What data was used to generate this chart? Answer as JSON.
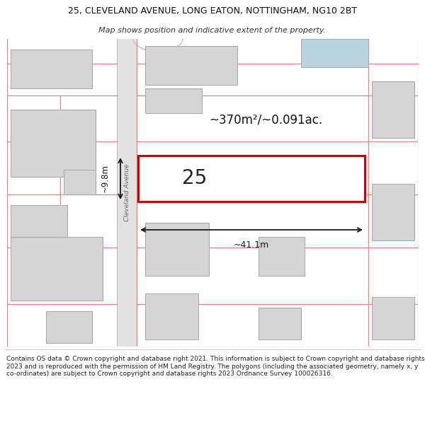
{
  "title_line1": "25, CLEVELAND AVENUE, LONG EATON, NOTTINGHAM, NG10 2BT",
  "title_line2": "Map shows position and indicative extent of the property.",
  "area_text": "~370m²/~0.091ac.",
  "property_number": "25",
  "width_label": "~41.1m",
  "height_label": "~9.8m",
  "street_label": "Cleveland Avenue",
  "footer_text": "Contains OS data © Crown copyright and database right 2021. This information is subject to Crown copyright and database rights 2023 and is reproduced with the permission of HM Land Registry. The polygons (including the associated geometry, namely x, y co-ordinates) are subject to Crown copyright and database rights 2023 Ordnance Survey 100026316.",
  "bg_color": "#ffffff",
  "boundary_color": "#f08080",
  "highlight_color": "#cc0000",
  "building_fill": "#d4d4d4",
  "building_stroke": "#aaaaaa",
  "road_fill": "#e8e8e8",
  "blue_fill": "#b8d4e0",
  "highlight_fill": "#ffffff"
}
